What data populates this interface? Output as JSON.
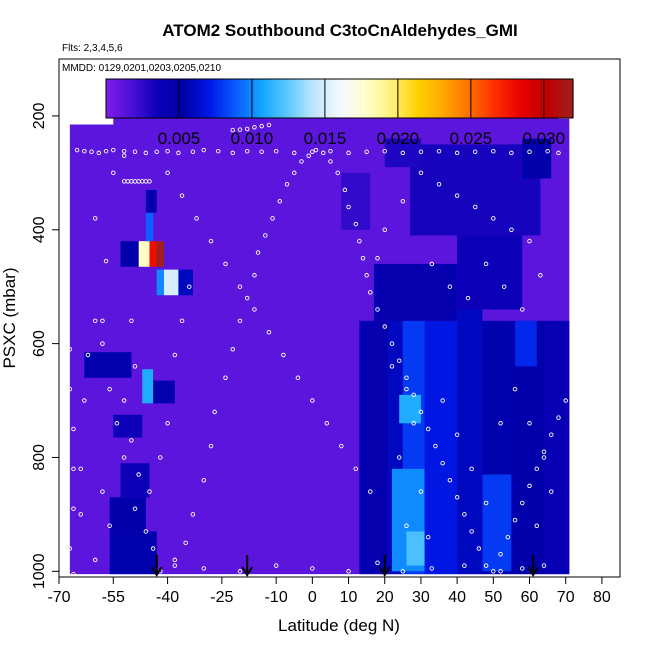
{
  "chart_data": {
    "type": "heatmap",
    "title": "ATOM2 Southbound C3toCnAldehydes_GMI",
    "subtitle_flights": "Flts: 2,3,4,5,6",
    "subtitle_dates": "MMDD: 0129,0201,0203,0205,0210",
    "xlabel": "Latitude (deg N)",
    "ylabel": "PSXC (mbar)",
    "xlim": [
      -70,
      85
    ],
    "ylim": [
      1010,
      100
    ],
    "x_ticks": [
      -70,
      -55,
      -40,
      -25,
      -10,
      0,
      10,
      20,
      30,
      40,
      50,
      60,
      70,
      80
    ],
    "x_tick_labels": [
      "-70",
      "-55",
      "-40",
      "-25",
      "-10",
      "0",
      "10",
      "20",
      "30",
      "40",
      "50",
      "60",
      "70",
      "80"
    ],
    "y_ticks": [
      200,
      400,
      600,
      800,
      1000
    ],
    "y_tick_labels": [
      "200",
      "400",
      "600",
      "800",
      "1000"
    ],
    "colorbar": {
      "range": [
        0,
        0.032
      ],
      "ticks": [
        0.005,
        0.01,
        0.015,
        0.02,
        0.025,
        0.03
      ],
      "tick_labels": [
        "0.005",
        "0.010",
        "0.015",
        "0.020",
        "0.025",
        "0.030"
      ],
      "colors": [
        "#7f1fe8",
        "#4b10d8",
        "#0a00b8",
        "#0000a8",
        "#0018e8",
        "#0a5cff",
        "#12a6ff",
        "#5cc8ff",
        "#bfe6ff",
        "#f4f8ff",
        "#ffffd0",
        "#fff07a",
        "#ffd200",
        "#ffa800",
        "#ff7000",
        "#ff2e00",
        "#e80000",
        "#bf0000",
        "#a02020"
      ]
    },
    "background_value": 0.0012,
    "profile_arrows_lat": [
      -43,
      -18,
      20,
      61
    ],
    "cells": [
      {
        "x0": -56,
        "x1": -43,
        "y0": 930,
        "y1": 1005,
        "v": 0.0055
      },
      {
        "x0": -56,
        "x1": -46,
        "y0": 870,
        "y1": 930,
        "v": 0.005
      },
      {
        "x0": -53,
        "x1": -45,
        "y0": 810,
        "y1": 870,
        "v": 0.0035
      },
      {
        "x0": -63,
        "x1": -50,
        "y0": 615,
        "y1": 660,
        "v": 0.0048
      },
      {
        "x0": -55,
        "x1": -47,
        "y0": 725,
        "y1": 765,
        "v": 0.0035
      },
      {
        "x0": -46,
        "x1": -38,
        "y0": 665,
        "y1": 705,
        "v": 0.0048
      },
      {
        "x0": -47,
        "x1": -44,
        "y0": 645,
        "y1": 705,
        "v": 0.011
      },
      {
        "x0": -48,
        "x1": -45,
        "y0": 420,
        "y1": 465,
        "v": 0.018
      },
      {
        "x0": -45,
        "x1": -43,
        "y0": 420,
        "y1": 465,
        "v": 0.028
      },
      {
        "x0": -43,
        "x1": -41,
        "y0": 420,
        "y1": 465,
        "v": 0.032
      },
      {
        "x0": -53,
        "x1": -48,
        "y0": 420,
        "y1": 465,
        "v": 0.005
      },
      {
        "x0": -46,
        "x1": -44,
        "y0": 370,
        "y1": 420,
        "v": 0.009
      },
      {
        "x0": -46,
        "x1": -43,
        "y0": 330,
        "y1": 370,
        "v": 0.005
      },
      {
        "x0": -43,
        "x1": -41,
        "y0": 470,
        "y1": 515,
        "v": 0.01
      },
      {
        "x0": -41,
        "x1": -37,
        "y0": 470,
        "y1": 515,
        "v": 0.015
      },
      {
        "x0": -37,
        "x1": -33,
        "y0": 470,
        "y1": 515,
        "v": 0.006
      },
      {
        "x0": 13,
        "x1": 21,
        "y0": 560,
        "y1": 1005,
        "v": 0.0045
      },
      {
        "x0": 21,
        "x1": 25,
        "y0": 500,
        "y1": 1005,
        "v": 0.006
      },
      {
        "x0": 25,
        "x1": 31,
        "y0": 560,
        "y1": 1005,
        "v": 0.008
      },
      {
        "x0": 24,
        "x1": 30,
        "y0": 690,
        "y1": 740,
        "v": 0.011
      },
      {
        "x0": 22,
        "x1": 31,
        "y0": 820,
        "y1": 1000,
        "v": 0.01
      },
      {
        "x0": 26,
        "x1": 34,
        "y0": 930,
        "y1": 990,
        "v": 0.012
      },
      {
        "x0": 31,
        "x1": 40,
        "y0": 560,
        "y1": 1005,
        "v": 0.007
      },
      {
        "x0": 40,
        "x1": 47,
        "y0": 540,
        "y1": 1005,
        "v": 0.006
      },
      {
        "x0": 47,
        "x1": 55,
        "y0": 560,
        "y1": 1005,
        "v": 0.0055
      },
      {
        "x0": 47,
        "x1": 55,
        "y0": 830,
        "y1": 1000,
        "v": 0.008
      },
      {
        "x0": 55,
        "x1": 64,
        "y0": 560,
        "y1": 1005,
        "v": 0.005
      },
      {
        "x0": 56,
        "x1": 62,
        "y0": 560,
        "y1": 640,
        "v": 0.0075
      },
      {
        "x0": 64,
        "x1": 71,
        "y0": 560,
        "y1": 1005,
        "v": 0.004
      },
      {
        "x0": 17,
        "x1": 40,
        "y0": 460,
        "y1": 560,
        "v": 0.0045
      },
      {
        "x0": 40,
        "x1": 58,
        "y0": 410,
        "y1": 540,
        "v": 0.0035
      },
      {
        "x0": 27,
        "x1": 63,
        "y0": 250,
        "y1": 410,
        "v": 0.0032
      },
      {
        "x0": 58,
        "x1": 66,
        "y0": 240,
        "y1": 310,
        "v": 0.005
      },
      {
        "x0": 20,
        "x1": 30,
        "y0": 240,
        "y1": 290,
        "v": 0.003
      },
      {
        "x0": 8,
        "x1": 16,
        "y0": 300,
        "y1": 400,
        "v": 0.0025
      }
    ],
    "markers": [
      [
        -67,
        960
      ],
      [
        -66,
        1005
      ],
      [
        -64,
        900
      ],
      [
        -64,
        820
      ],
      [
        -63,
        700
      ],
      [
        -62,
        620
      ],
      [
        -58,
        560
      ],
      [
        -57,
        455
      ],
      [
        -60,
        380
      ],
      [
        -55,
        300
      ],
      [
        -52,
        270
      ],
      [
        -50,
        560
      ],
      [
        -49,
        640
      ],
      [
        -52,
        700
      ],
      [
        -50,
        770
      ],
      [
        -48,
        830
      ],
      [
        -49,
        890
      ],
      [
        -46,
        930
      ],
      [
        -44,
        960
      ],
      [
        -42,
        1000
      ],
      [
        -38,
        980
      ],
      [
        -35,
        950
      ],
      [
        -33,
        900
      ],
      [
        -30,
        840
      ],
      [
        -28,
        780
      ],
      [
        -27,
        720
      ],
      [
        -24,
        660
      ],
      [
        -22,
        610
      ],
      [
        -20,
        560
      ],
      [
        -18,
        520
      ],
      [
        -16,
        480
      ],
      [
        -15,
        440
      ],
      [
        -13,
        410
      ],
      [
        -11,
        380
      ],
      [
        -9,
        350
      ],
      [
        -7,
        320
      ],
      [
        -5,
        300
      ],
      [
        -3,
        280
      ],
      [
        -1,
        270
      ],
      [
        1,
        260
      ],
      [
        3,
        265
      ],
      [
        5,
        280
      ],
      [
        7,
        300
      ],
      [
        9,
        330
      ],
      [
        10,
        360
      ],
      [
        12,
        390
      ],
      [
        13,
        420
      ],
      [
        14,
        450
      ],
      [
        15,
        480
      ],
      [
        16,
        510
      ],
      [
        18,
        540
      ],
      [
        20,
        570
      ],
      [
        22,
        600
      ],
      [
        24,
        630
      ],
      [
        26,
        660
      ],
      [
        28,
        690
      ],
      [
        30,
        720
      ],
      [
        32,
        750
      ],
      [
        34,
        780
      ],
      [
        36,
        810
      ],
      [
        38,
        840
      ],
      [
        40,
        870
      ],
      [
        42,
        900
      ],
      [
        44,
        930
      ],
      [
        46,
        960
      ],
      [
        48,
        990
      ],
      [
        50,
        1000
      ],
      [
        52,
        970
      ],
      [
        54,
        940
      ],
      [
        56,
        910
      ],
      [
        58,
        880
      ],
      [
        60,
        850
      ],
      [
        62,
        820
      ],
      [
        64,
        790
      ],
      [
        66,
        760
      ],
      [
        68,
        730
      ],
      [
        70,
        700
      ],
      [
        -65,
        260
      ],
      [
        -63,
        262
      ],
      [
        -61,
        263
      ],
      [
        -59,
        265
      ],
      [
        -57,
        262
      ],
      [
        -55,
        260
      ],
      [
        -52,
        262
      ],
      [
        -49,
        263
      ],
      [
        -46,
        265
      ],
      [
        -43,
        263
      ],
      [
        -40,
        262
      ],
      [
        -37,
        265
      ],
      [
        -33,
        263
      ],
      [
        -30,
        260
      ],
      [
        -26,
        262
      ],
      [
        -22,
        265
      ],
      [
        -18,
        262
      ],
      [
        -14,
        263
      ],
      [
        -10,
        262
      ],
      [
        -5,
        265
      ],
      [
        0,
        263
      ],
      [
        5,
        262
      ],
      [
        10,
        265
      ],
      [
        15,
        263
      ],
      [
        20,
        262
      ],
      [
        25,
        265
      ],
      [
        30,
        263
      ],
      [
        35,
        262
      ],
      [
        40,
        265
      ],
      [
        45,
        263
      ],
      [
        50,
        262
      ],
      [
        55,
        265
      ],
      [
        60,
        263
      ],
      [
        65,
        262
      ],
      [
        68,
        265
      ],
      [
        -55,
        200
      ],
      [
        -53,
        200
      ],
      [
        -51,
        200
      ],
      [
        -49,
        200
      ],
      [
        -47,
        200
      ],
      [
        -45,
        200
      ],
      [
        -43,
        200
      ],
      [
        -22,
        225
      ],
      [
        -20,
        224
      ],
      [
        -18,
        223
      ],
      [
        -16,
        220
      ],
      [
        -14,
        218
      ],
      [
        -12,
        216
      ],
      [
        -52,
        315
      ],
      [
        -51,
        315
      ],
      [
        -50,
        315
      ],
      [
        -49,
        315
      ],
      [
        -48,
        315
      ],
      [
        -47,
        315
      ],
      [
        -46,
        315
      ],
      [
        -45,
        315
      ],
      [
        -68,
        230
      ],
      [
        -68,
        270
      ],
      [
        -68,
        330
      ],
      [
        -68,
        400
      ],
      [
        -68,
        470
      ],
      [
        -68,
        540
      ],
      [
        -67,
        610
      ],
      [
        -67,
        680
      ],
      [
        -66,
        750
      ],
      [
        -66,
        820
      ],
      [
        -66,
        890
      ],
      [
        -40,
        300
      ],
      [
        -36,
        340
      ],
      [
        -32,
        380
      ],
      [
        -28,
        420
      ],
      [
        -24,
        460
      ],
      [
        -20,
        500
      ],
      [
        -16,
        540
      ],
      [
        -12,
        580
      ],
      [
        -8,
        620
      ],
      [
        -4,
        660
      ],
      [
        0,
        700
      ],
      [
        4,
        740
      ],
      [
        8,
        780
      ],
      [
        12,
        820
      ],
      [
        16,
        860
      ],
      [
        -38,
        990
      ],
      [
        -30,
        995
      ],
      [
        -20,
        1000
      ],
      [
        -10,
        990
      ],
      [
        0,
        995
      ],
      [
        10,
        1000
      ],
      [
        18,
        985
      ],
      [
        25,
        1000
      ],
      [
        33,
        995
      ],
      [
        42,
        990
      ],
      [
        52,
        1000
      ],
      [
        58,
        995
      ],
      [
        64,
        990
      ],
      [
        22,
        640
      ],
      [
        26,
        680
      ],
      [
        28,
        740
      ],
      [
        24,
        800
      ],
      [
        30,
        860
      ],
      [
        26,
        920
      ],
      [
        32,
        940
      ],
      [
        36,
        700
      ],
      [
        40,
        760
      ],
      [
        44,
        820
      ],
      [
        48,
        880
      ],
      [
        52,
        740
      ],
      [
        56,
        680
      ],
      [
        60,
        740
      ],
      [
        64,
        800
      ],
      [
        66,
        860
      ],
      [
        62,
        920
      ],
      [
        30,
        300
      ],
      [
        35,
        320
      ],
      [
        40,
        340
      ],
      [
        45,
        360
      ],
      [
        50,
        380
      ],
      [
        55,
        400
      ],
      [
        60,
        420
      ],
      [
        33,
        460
      ],
      [
        38,
        500
      ],
      [
        43,
        520
      ],
      [
        48,
        460
      ],
      [
        53,
        500
      ],
      [
        58,
        540
      ],
      [
        63,
        480
      ],
      [
        25,
        350
      ],
      [
        20,
        400
      ],
      [
        18,
        450
      ],
      [
        -60,
        560
      ],
      [
        -58,
        600
      ],
      [
        -56,
        680
      ],
      [
        -54,
        740
      ],
      [
        -52,
        800
      ],
      [
        -58,
        860
      ],
      [
        -56,
        920
      ],
      [
        -60,
        980
      ],
      [
        -45,
        860
      ],
      [
        -42,
        800
      ],
      [
        -40,
        740
      ],
      [
        -38,
        620
      ],
      [
        -36,
        560
      ],
      [
        -34,
        500
      ]
    ]
  }
}
